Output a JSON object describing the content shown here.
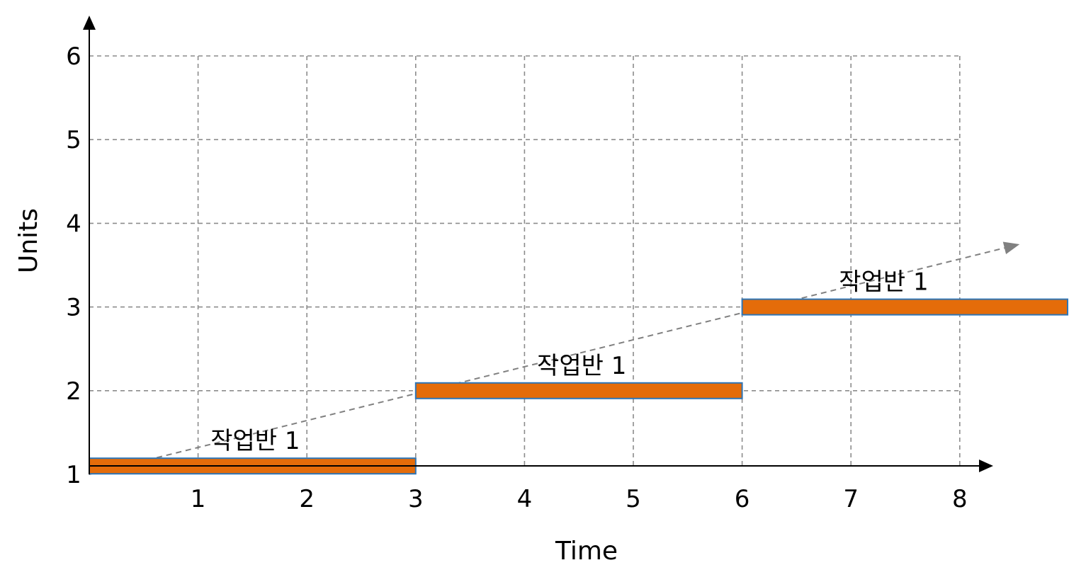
{
  "chart_data": {
    "type": "bar",
    "xlabel": "Time",
    "ylabel": "Units",
    "xlim": [
      0,
      8
    ],
    "ylim": [
      1,
      6
    ],
    "x_ticks": [
      "1",
      "2",
      "3",
      "4",
      "5",
      "6",
      "7",
      "8"
    ],
    "y_ticks": [
      "1",
      "2",
      "3",
      "4",
      "5",
      "6"
    ],
    "grid": true,
    "bar_color": "#E46C0A",
    "bar_edge_color": "#2E75B6",
    "trend_color": "#808080",
    "bars": [
      {
        "label": "작업반 1",
        "x_start": 0,
        "x_end": 3,
        "y": 1.1
      },
      {
        "label": "작업반 1",
        "x_start": 3,
        "x_end": 6,
        "y": 2.0
      },
      {
        "label": "작업반 1",
        "x_start": 6,
        "x_end": 9,
        "y": 3.0
      }
    ],
    "trend_line": {
      "x_start": 0,
      "y_start": 1,
      "x_end": 8.55,
      "y_end": 3.75
    }
  }
}
